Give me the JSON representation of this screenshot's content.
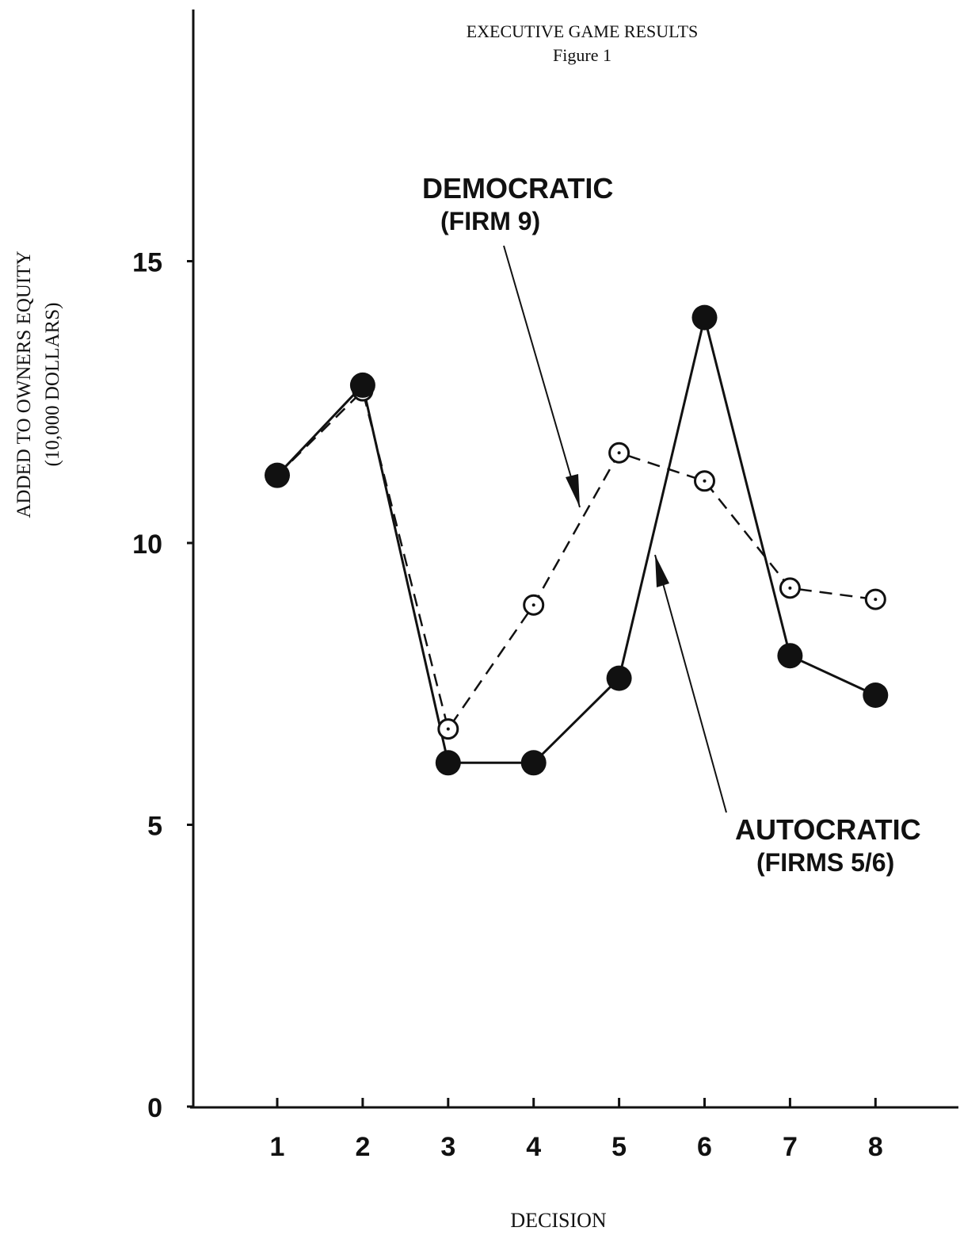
{
  "chart_data": {
    "type": "line",
    "title": "EXECUTIVE GAME RESULTS",
    "subtitle": "Figure 1",
    "xlabel": "DECISION",
    "ylabel": "ADDED TO OWNERS EQUITY",
    "ylabel_unit": "(10,000 DOLLARS)",
    "x": [
      1,
      2,
      3,
      4,
      5,
      6,
      7,
      8
    ],
    "x_ticks": [
      "1",
      "2",
      "3",
      "4",
      "5",
      "6",
      "7",
      "8"
    ],
    "y_ticks": [
      "0",
      "5",
      "10",
      "15"
    ],
    "ylim": [
      0,
      19
    ],
    "grid": false,
    "series": [
      {
        "name": "AUTOCRATIC",
        "name_note": "(FIRMS 5/6)",
        "values": [
          11.2,
          12.8,
          6.1,
          6.1,
          7.6,
          14.0,
          8.0,
          7.3
        ],
        "marker": "filled-circle",
        "line_style": "solid",
        "color": "#111111"
      },
      {
        "name": "DEMOCRATIC",
        "name_note": "(FIRM 9)",
        "values": [
          11.2,
          12.7,
          6.7,
          8.9,
          11.6,
          11.1,
          9.2,
          9.0
        ],
        "marker": "open-circle-dot",
        "line_style": "dashed",
        "color": "#111111"
      }
    ]
  }
}
